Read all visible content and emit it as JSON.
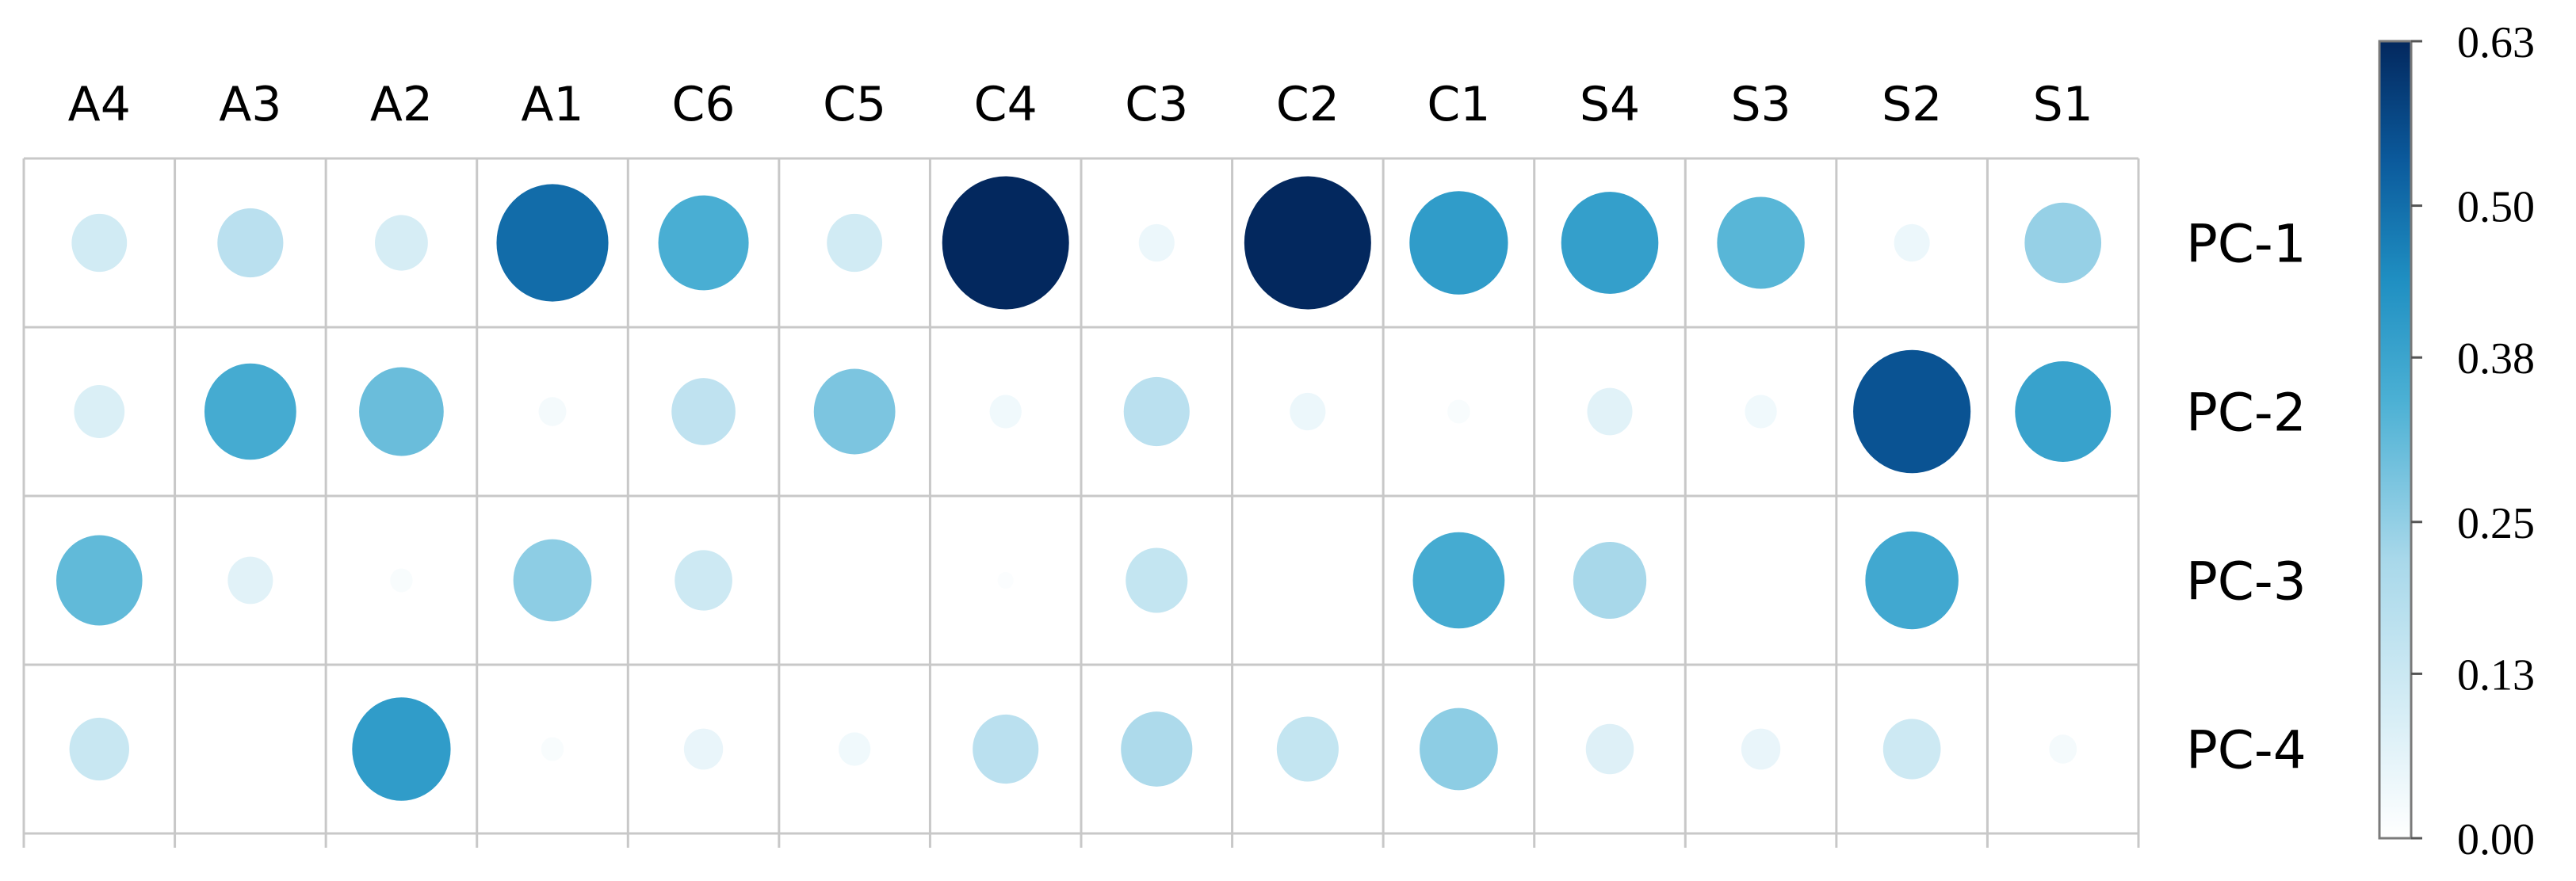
{
  "chart_data": {
    "type": "heatmap",
    "encoding": "circle size and color represent value",
    "columns": [
      "A4",
      "A3",
      "A2",
      "A1",
      "C6",
      "C5",
      "C4",
      "C3",
      "C2",
      "C1",
      "S4",
      "S3",
      "S2",
      "S1"
    ],
    "rows": [
      "PC-1",
      "PC-2",
      "PC-3",
      "PC-4"
    ],
    "values": [
      [
        0.12,
        0.17,
        0.11,
        0.49,
        0.32,
        0.12,
        0.63,
        0.05,
        0.63,
        0.38,
        0.37,
        0.3,
        0.05,
        0.23
      ],
      [
        0.1,
        0.33,
        0.28,
        0.03,
        0.16,
        0.26,
        0.04,
        0.17,
        0.05,
        0.02,
        0.08,
        0.04,
        0.54,
        0.36
      ],
      [
        0.29,
        0.08,
        0.02,
        0.24,
        0.13,
        0.0,
        0.01,
        0.15,
        0.0,
        0.33,
        0.21,
        0.0,
        0.34,
        0.0
      ],
      [
        0.14,
        0.0,
        0.38,
        0.02,
        0.06,
        0.04,
        0.17,
        0.2,
        0.15,
        0.24,
        0.09,
        0.06,
        0.13,
        0.03
      ]
    ],
    "colorbar": {
      "range": [
        0.0,
        0.63
      ],
      "ticks": [
        "0.63",
        "0.50",
        "0.38",
        "0.25",
        "0.13",
        "0.00"
      ],
      "tick_values": [
        0.63,
        0.5,
        0.38,
        0.25,
        0.13,
        0.0
      ],
      "colors": [
        "#ffffff",
        "#d8eef6",
        "#a8d8ea",
        "#4bb0d4",
        "#1f8fc2",
        "#0b5a9c",
        "#03285e"
      ]
    },
    "grid": true,
    "legend": "right"
  }
}
